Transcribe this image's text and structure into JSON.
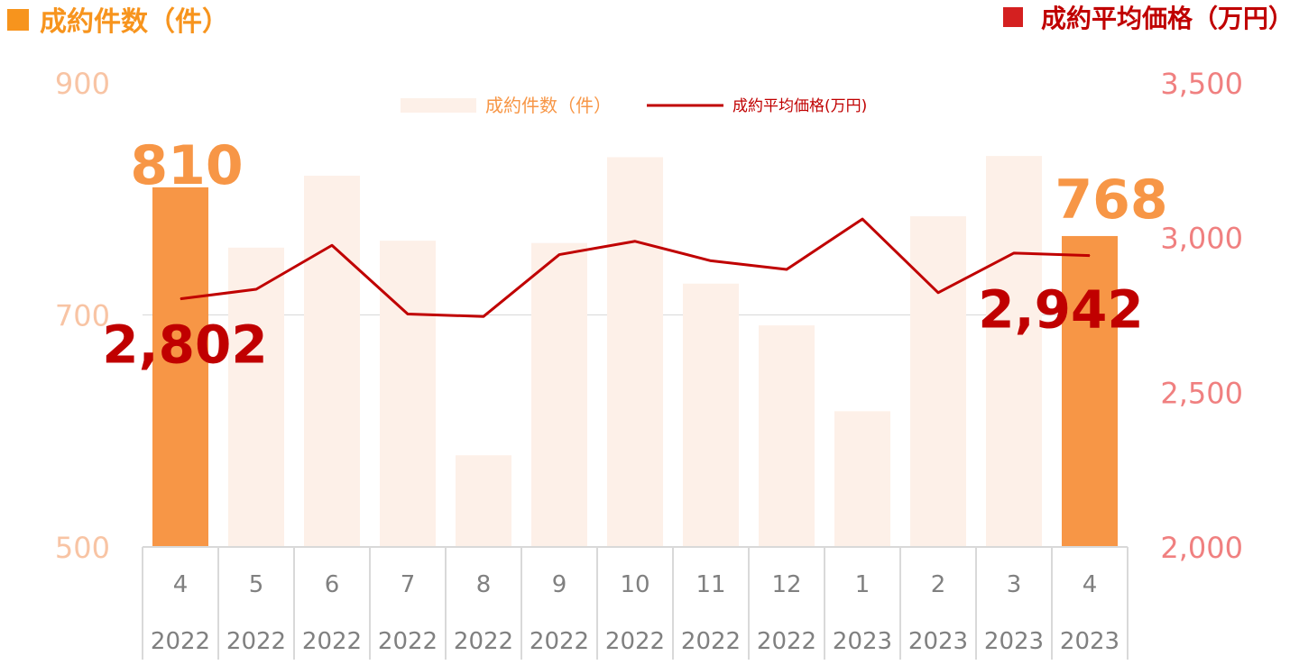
{
  "chart_data": {
    "type": "bar+line",
    "left_axis_title": "成約件数（件）",
    "right_axis_title": "成約平均価格（万円）",
    "legend": {
      "bar_label": "成約件数（件）",
      "line_label": "成約平均価格(万円)"
    },
    "categories": [
      {
        "month": "4",
        "year": "2022"
      },
      {
        "month": "5",
        "year": "2022"
      },
      {
        "month": "6",
        "year": "2022"
      },
      {
        "month": "7",
        "year": "2022"
      },
      {
        "month": "8",
        "year": "2022"
      },
      {
        "month": "9",
        "year": "2022"
      },
      {
        "month": "10",
        "year": "2022"
      },
      {
        "month": "11",
        "year": "2022"
      },
      {
        "month": "12",
        "year": "2022"
      },
      {
        "month": "1",
        "year": "2023"
      },
      {
        "month": "2",
        "year": "2023"
      },
      {
        "month": "3",
        "year": "2023"
      },
      {
        "month": "4",
        "year": "2023"
      }
    ],
    "series": [
      {
        "name": "成約件数（件）",
        "axis": "left",
        "type": "bar",
        "values": [
          810,
          758,
          820,
          764,
          579,
          762,
          836,
          727,
          691,
          617,
          785,
          837,
          768
        ],
        "highlight_indices": [
          0,
          12
        ]
      },
      {
        "name": "成約平均価格(万円)",
        "axis": "right",
        "type": "line",
        "values": [
          2802,
          2833,
          2975,
          2753,
          2745,
          2945,
          2988,
          2925,
          2897,
          3060,
          2822,
          2950,
          2942
        ]
      }
    ],
    "left_axis": {
      "min": 500,
      "max": 900,
      "ticks": [
        "500",
        "700",
        "900"
      ]
    },
    "right_axis": {
      "min": 2000,
      "max": 3500,
      "ticks": [
        "2,000",
        "2,500",
        "3,000",
        "3,500"
      ]
    },
    "data_labels": {
      "bar_first": "810",
      "bar_last": "768",
      "line_first": "2,802",
      "line_last": "2,942"
    },
    "gridlines": true,
    "colors": {
      "bar_highlight": "#f79646",
      "bar_normal": "#fdf0e8",
      "line": "#c00000",
      "left_axis_text": "#f8c4a4",
      "right_axis_text": "#f08080",
      "left_title": "#f7941d",
      "left_marker": "#f7941d",
      "right_title": "#c00000",
      "right_marker": "#d42020",
      "grid": "#d9d9d9",
      "category_text": "#808080",
      "bar_label": "#f79646",
      "line_label": "#c00000",
      "legend_bar_text": "#f79646",
      "legend_line_text": "#c00000"
    }
  }
}
